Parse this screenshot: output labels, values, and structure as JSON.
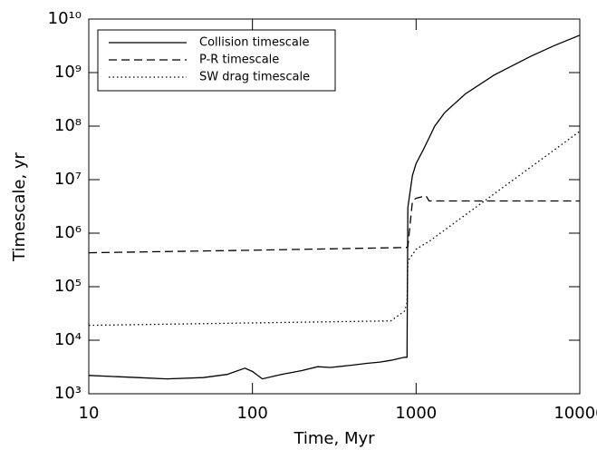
{
  "chart_data": {
    "type": "line",
    "x_label": "Time, Myr",
    "y_label": "Timescale, yr",
    "x_log": true,
    "y_log": true,
    "xlim": [
      10,
      10000
    ],
    "ylim": [
      1000,
      10000000000
    ],
    "xticks": [
      10,
      100,
      1000,
      10000
    ],
    "yticks": [
      {
        "value": 1000,
        "label": "10³"
      },
      {
        "value": 10000,
        "label": "10⁴"
      },
      {
        "value": 100000,
        "label": "10⁵"
      },
      {
        "value": 1000000,
        "label": "10⁶"
      },
      {
        "value": 10000000,
        "label": "10⁷"
      },
      {
        "value": 100000000,
        "label": "10⁸"
      },
      {
        "value": 1000000000,
        "label": "10⁹"
      },
      {
        "value": 10000000000,
        "label": "10¹⁰"
      }
    ],
    "legend": "upper left",
    "series": [
      {
        "name": "Collision timescale",
        "color": "#000000",
        "dash": "solid",
        "x": [
          10,
          20,
          30,
          50,
          70,
          90,
          100,
          115,
          150,
          200,
          250,
          300,
          400,
          500,
          600,
          700,
          850,
          880,
          890,
          950,
          1000,
          1100,
          1200,
          1300,
          1500,
          2000,
          3000,
          5000,
          7000,
          10000
        ],
        "values": [
          2200,
          2000,
          1900,
          2000,
          2300,
          3000,
          2600,
          1900,
          2300,
          2700,
          3200,
          3100,
          3400,
          3700,
          3900,
          4200,
          4800,
          4800,
          3000000,
          12000000,
          20000000,
          35000000,
          60000000,
          100000000,
          180000000,
          400000000,
          900000000,
          2000000000,
          3200000000,
          5000000000
        ]
      },
      {
        "name": "P-R timescale",
        "color": "#000000",
        "dash": "dashed",
        "x": [
          10,
          100,
          870,
          890,
          950,
          1000,
          1150,
          1200,
          10000
        ],
        "values": [
          430000,
          480000,
          540000,
          560000,
          4000000,
          4500000,
          5000000,
          4000000,
          4000000
        ]
      },
      {
        "name": "SW drag timescale",
        "color": "#000000",
        "dash": "dotted",
        "x": [
          10,
          700,
          850,
          880,
          890,
          950,
          1000,
          1100,
          1200,
          10000
        ],
        "values": [
          19000,
          23000,
          35000,
          50000,
          300000,
          400000,
          500000,
          600000,
          700000,
          80000000
        ]
      }
    ]
  }
}
